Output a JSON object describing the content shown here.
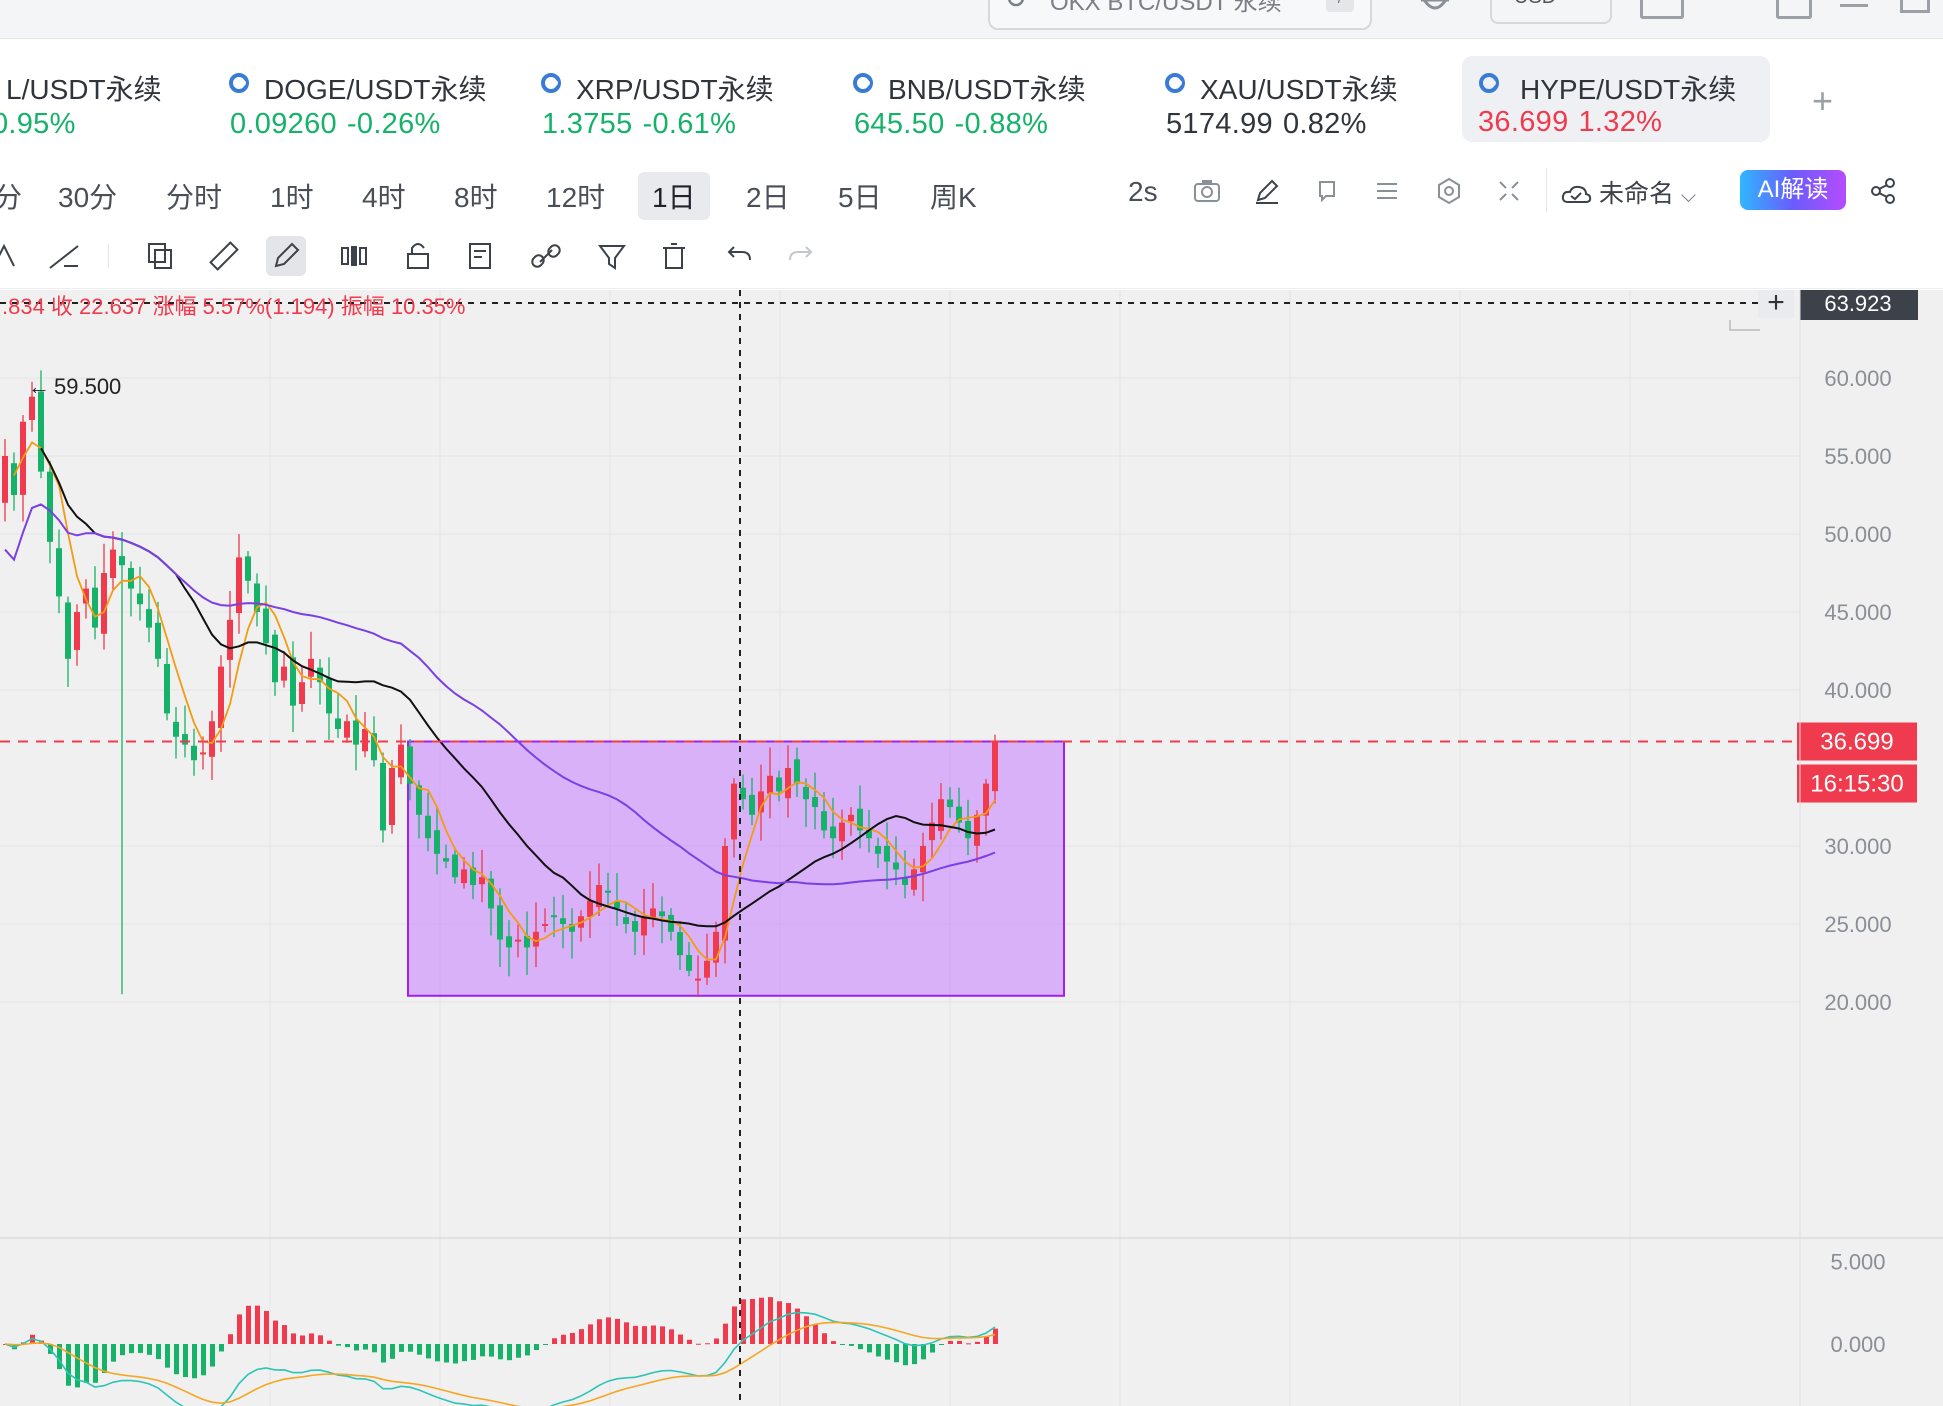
{
  "topbar": {
    "search_placeholder": "OKX BTC/USDT 永续",
    "search_shortcut": "/",
    "currency": "USD"
  },
  "tickers": [
    {
      "name": "L/USDT永续",
      "price": "",
      "change": "-0.95%",
      "direction": "down_green"
    },
    {
      "name": "DOGE/USDT永续",
      "price": "0.09260",
      "change": "-0.26%",
      "direction": "up"
    },
    {
      "name": "XRP/USDT永续",
      "price": "1.3755",
      "change": "-0.61%",
      "direction": "up"
    },
    {
      "name": "BNB/USDT永续",
      "price": "645.50",
      "change": "-0.88%",
      "direction": "up"
    },
    {
      "name": "XAU/USDT永续",
      "price": "5174.99",
      "change": "0.82%",
      "direction": "neutral"
    },
    {
      "name": "HYPE/USDT永续",
      "price": "36.699",
      "change": "1.32%",
      "direction": "down",
      "active": true
    }
  ],
  "add_tab": "+",
  "timeframes": [
    "分",
    "30分",
    "分时",
    "1时",
    "4时",
    "8时",
    "12时",
    "1日",
    "2日",
    "5日",
    "周K"
  ],
  "active_timeframe": "1日",
  "refresh_interval": "2s",
  "layout_name": "未命名",
  "ai_button": "AI解读",
  "ohlc_info": ".834  收 22.637  涨幅 5.57%(1.194)  振幅 10.35%",
  "colors": {
    "up": "#ef3b4d",
    "down": "#17b26a",
    "ma_fast": "#f39c12",
    "ma_mid": "#111111",
    "ma_slow": "#7b3fe4",
    "box": "#c77dff",
    "price_line": "#ef3b4d"
  },
  "chart_data": {
    "type": "candlestick",
    "symbol": "HYPE/USDT永续",
    "interval": "1日",
    "y_axis_ticks": [
      "60.000",
      "55.000",
      "50.000",
      "45.000",
      "40.000",
      "30.000",
      "25.000",
      "20.000"
    ],
    "y_range": [
      16.5,
      63.923
    ],
    "crosshair_price": "63.923",
    "last_price": "36.699",
    "countdown": "16:15:30",
    "high_annotation": "59.500",
    "indicator_ticks": [
      "5.000",
      "0.000"
    ],
    "closes": [
      55.0,
      52.5,
      57.2,
      58.8,
      54.0,
      49.5,
      46.0,
      42.0,
      45.0,
      46.5,
      44.0,
      47.5,
      49.0,
      48.0,
      46.5,
      45.5,
      44.0,
      42.0,
      38.5,
      37.0,
      36.5,
      35.5,
      36.0,
      38.0,
      41.5,
      44.5,
      48.5,
      47.0,
      45.0,
      43.0,
      40.5,
      41.5,
      39.0,
      40.5,
      42.0,
      40.5,
      38.5,
      37.5,
      38.0,
      36.5,
      37.5,
      35.5,
      31.0,
      35.0,
      36.5,
      34.0,
      32.0,
      30.5,
      29.5,
      29.0,
      28.0,
      28.5,
      27.5,
      28.0,
      26.0,
      24.0,
      23.5,
      24.0,
      23.5,
      24.5,
      25.0,
      25.5,
      25.0,
      24.5,
      25.5,
      26.5,
      27.5,
      27.0,
      26.0,
      25.0,
      24.5,
      25.5,
      26.0,
      25.5,
      24.5,
      23.0,
      22.0,
      21.5,
      22.64,
      24.5,
      30.0,
      34.0,
      33.0,
      32.0,
      33.5,
      34.5,
      33.5,
      35.0,
      34.0,
      33.0,
      32.5,
      31.0,
      30.5,
      31.5,
      32.0,
      31.0,
      30.5,
      29.5,
      29.0,
      28.5,
      27.5,
      28.5,
      30.0,
      31.5,
      33.0,
      32.5,
      31.5,
      30.5,
      32.0,
      34.0,
      36.699
    ],
    "rectangle": {
      "price_top": 36.7,
      "price_bottom": 20.4
    }
  }
}
